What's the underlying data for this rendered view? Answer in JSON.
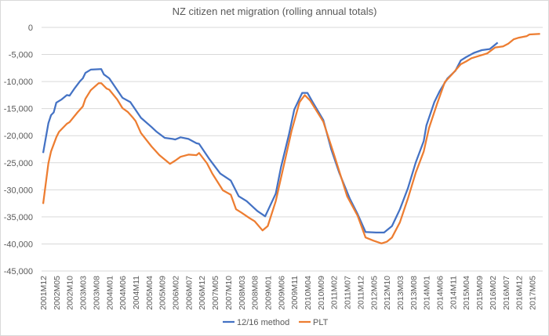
{
  "chart_data": {
    "type": "line",
    "title": "NZ citizen net migration (rolling annual totals)",
    "xlabel": "",
    "ylabel": "",
    "ylim": [
      -45000,
      0
    ],
    "yticks": [
      0,
      -5000,
      -10000,
      -15000,
      -20000,
      -25000,
      -30000,
      -35000,
      -40000,
      -45000
    ],
    "ytick_labels": [
      "0",
      "-5,000",
      "-10,000",
      "-15,000",
      "-20,000",
      "-25,000",
      "-30,000",
      "-35,000",
      "-40,000",
      "-45,000"
    ],
    "xtick_labels": [
      "2001M12",
      "2002M05",
      "2002M10",
      "2003M03",
      "2003M08",
      "2004M01",
      "2004M06",
      "2004M11",
      "2005M04",
      "2005M09",
      "2006M02",
      "2006M07",
      "2006M12",
      "2007M05",
      "2007M10",
      "2008M03",
      "2008M08",
      "2009M01",
      "2009M06",
      "2009M11",
      "2010M04",
      "2010M09",
      "2011M02",
      "2011M07",
      "2011M12",
      "2012M05",
      "2012M10",
      "2013M03",
      "2013M08",
      "2014M01",
      "2014M06",
      "2014M11",
      "2015M04",
      "2015M09",
      "2016M02",
      "2016M07",
      "2016M12",
      "2017M05"
    ],
    "grid": true,
    "legend_position": "bottom",
    "series": [
      {
        "name": "12/16 method",
        "color": "#4472C4",
        "points": [
          [
            "2001M12",
            -23200
          ],
          [
            "2002M02",
            -17700
          ],
          [
            "2002M03",
            -16200
          ],
          [
            "2002M04",
            -15700
          ],
          [
            "2002M05",
            -13900
          ],
          [
            "2002M07",
            -13300
          ],
          [
            "2002M09",
            -12500
          ],
          [
            "2002M10",
            -12600
          ],
          [
            "2002M12",
            -11200
          ],
          [
            "2003M02",
            -9900
          ],
          [
            "2003M03",
            -9400
          ],
          [
            "2003M04",
            -8400
          ],
          [
            "2003M06",
            -7800
          ],
          [
            "2003M10",
            -7700
          ],
          [
            "2003M11",
            -8700
          ],
          [
            "2004M01",
            -9400
          ],
          [
            "2004M06",
            -13000
          ],
          [
            "2004M09",
            -13800
          ],
          [
            "2005M01",
            -16700
          ],
          [
            "2005M05",
            -18400
          ],
          [
            "2005M07",
            -19300
          ],
          [
            "2005M10",
            -20400
          ],
          [
            "2006M01",
            -20600
          ],
          [
            "2006M02",
            -20700
          ],
          [
            "2006M04",
            -20300
          ],
          [
            "2006M07",
            -20600
          ],
          [
            "2006M10",
            -21400
          ],
          [
            "2006M11",
            -21500
          ],
          [
            "2007M03",
            -24400
          ],
          [
            "2007M07",
            -27000
          ],
          [
            "2007M11",
            -28300
          ],
          [
            "2008M02",
            -31200
          ],
          [
            "2008M05",
            -32100
          ],
          [
            "2008M09",
            -33900
          ],
          [
            "2008M12",
            -34900
          ],
          [
            "2009M04",
            -30700
          ],
          [
            "2009M06",
            -25800
          ],
          [
            "2009M09",
            -19800
          ],
          [
            "2009M11",
            -15200
          ],
          [
            "2010M02",
            -12100
          ],
          [
            "2010M04",
            -12100
          ],
          [
            "2010M06",
            -13800
          ],
          [
            "2010M10",
            -17100
          ],
          [
            "2011M01",
            -22500
          ],
          [
            "2011M04",
            -26800
          ],
          [
            "2011M08",
            -31600
          ],
          [
            "2011M11",
            -34500
          ],
          [
            "2012M02",
            -37800
          ],
          [
            "2012M06",
            -37900
          ],
          [
            "2012M09",
            -37900
          ],
          [
            "2012M12",
            -36700
          ],
          [
            "2013M03",
            -33600
          ],
          [
            "2013M06",
            -29700
          ],
          [
            "2013M09",
            -24900
          ],
          [
            "2013M12",
            -21000
          ],
          [
            "2014M01",
            -18100
          ],
          [
            "2014M04",
            -13800
          ],
          [
            "2014M06",
            -11800
          ],
          [
            "2014M09",
            -9400
          ],
          [
            "2014M12",
            -8000
          ],
          [
            "2015M02",
            -6100
          ],
          [
            "2015M04",
            -5500
          ],
          [
            "2015M07",
            -4700
          ],
          [
            "2015M10",
            -4200
          ],
          [
            "2016M01",
            -4000
          ],
          [
            "2016M04",
            -2800
          ]
        ]
      },
      {
        "name": "PLT",
        "color": "#ED7D31",
        "points": [
          [
            "2001M12",
            -32600
          ],
          [
            "2002M02",
            -25100
          ],
          [
            "2002M03",
            -22900
          ],
          [
            "2002M05",
            -20300
          ],
          [
            "2002M06",
            -19300
          ],
          [
            "2002M09",
            -17800
          ],
          [
            "2002M10",
            -17500
          ],
          [
            "2003M01",
            -15700
          ],
          [
            "2003M03",
            -14600
          ],
          [
            "2003M04",
            -13200
          ],
          [
            "2003M06",
            -11600
          ],
          [
            "2003M09",
            -10300
          ],
          [
            "2003M10",
            -10300
          ],
          [
            "2003M12",
            -11300
          ],
          [
            "2004M01",
            -11500
          ],
          [
            "2004M04",
            -13300
          ],
          [
            "2004M06",
            -14900
          ],
          [
            "2004M08",
            -15600
          ],
          [
            "2004M10",
            -16700
          ],
          [
            "2004M11",
            -17300
          ],
          [
            "2005M01",
            -19500
          ],
          [
            "2005M05",
            -22000
          ],
          [
            "2005M08",
            -23600
          ],
          [
            "2005M12",
            -25200
          ],
          [
            "2006M02",
            -24600
          ],
          [
            "2006M04",
            -23900
          ],
          [
            "2006M07",
            -23500
          ],
          [
            "2006M10",
            -23600
          ],
          [
            "2006M11",
            -23200
          ],
          [
            "2007M02",
            -25100
          ],
          [
            "2007M04",
            -27000
          ],
          [
            "2007M08",
            -30100
          ],
          [
            "2007M11",
            -30900
          ],
          [
            "2008M01",
            -33600
          ],
          [
            "2008M03",
            -34200
          ],
          [
            "2008M06",
            -35200
          ],
          [
            "2008M08",
            -35800
          ],
          [
            "2008M11",
            -37500
          ],
          [
            "2009M01",
            -36700
          ],
          [
            "2009M04",
            -32100
          ],
          [
            "2009M07",
            -25600
          ],
          [
            "2009M10",
            -19100
          ],
          [
            "2010M01",
            -13800
          ],
          [
            "2010M03",
            -12500
          ],
          [
            "2010M05",
            -13500
          ],
          [
            "2010M10",
            -17400
          ],
          [
            "2011M02",
            -23400
          ],
          [
            "2011M07",
            -31200
          ],
          [
            "2011M11",
            -34800
          ],
          [
            "2012M02",
            -38800
          ],
          [
            "2012M05",
            -39400
          ],
          [
            "2012M08",
            -39900
          ],
          [
            "2012M10",
            -39600
          ],
          [
            "2012M12",
            -38800
          ],
          [
            "2013M03",
            -36000
          ],
          [
            "2013M06",
            -31600
          ],
          [
            "2013M09",
            -26800
          ],
          [
            "2013M12",
            -22900
          ],
          [
            "2014M02",
            -18600
          ],
          [
            "2014M05",
            -14200
          ],
          [
            "2014M08",
            -10100
          ],
          [
            "2014M11",
            -8500
          ],
          [
            "2015M02",
            -6800
          ],
          [
            "2015M04",
            -6300
          ],
          [
            "2015M06",
            -5700
          ],
          [
            "2015M08",
            -5400
          ],
          [
            "2015M12",
            -4800
          ],
          [
            "2016M03",
            -3700
          ],
          [
            "2016M06",
            -3500
          ],
          [
            "2016M08",
            -3000
          ],
          [
            "2016M10",
            -2200
          ],
          [
            "2016M12",
            -1900
          ],
          [
            "2017M03",
            -1600
          ],
          [
            "2017M04",
            -1300
          ],
          [
            "2017M08",
            -1200
          ]
        ]
      }
    ]
  }
}
